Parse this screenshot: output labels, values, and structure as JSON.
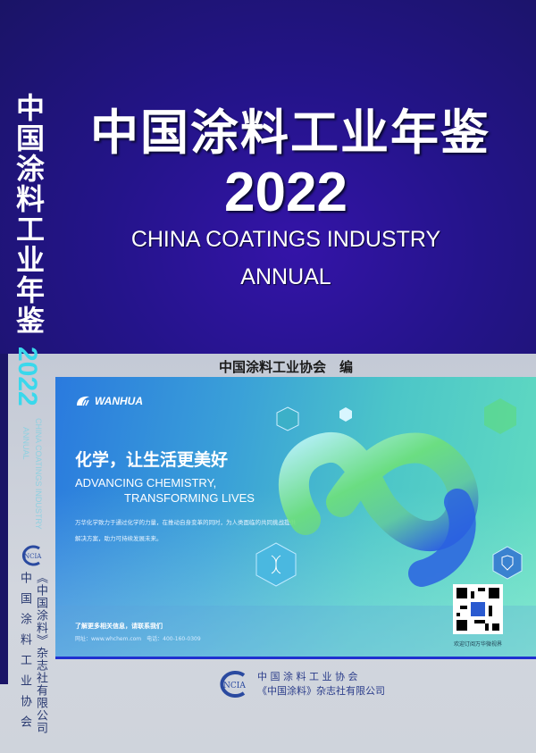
{
  "cover": {
    "title_cn": "中国涂料工业年鉴",
    "year": "2022",
    "title_en_line1": "CHINA COATINGS INDUSTRY",
    "title_en_line2": "ANNUAL",
    "editor": "中国涂料工业协会　编"
  },
  "spine": {
    "title_chars": [
      "中",
      "国",
      "涂",
      "料",
      "工",
      "业",
      "年",
      "鉴"
    ],
    "year": "2022",
    "en_line1": "CHINA COATINGS INDUSTRY",
    "en_line2": "ANNUAL",
    "logo_text": "NCIA",
    "publisher_col1": "《中国涂料》杂志社有限公司",
    "publisher_col2": "中国涂料工业协会"
  },
  "ad": {
    "brand": "WANHUA",
    "slogan_cn": "化学，让生活更美好",
    "slogan_en_line1": "ADVANCING CHEMISTRY,",
    "slogan_en_line2": "TRANSFORMING LIVES",
    "body": "万华化学致力于通过化学的力量，在推动自身变革的同时，为人类面临的共同挑战提供解决方案，助力可持续发展未来。",
    "contact_heading": "了解更多相关信息，请联系我们",
    "contact_line": "网址：www.whchem.com　电话：400-160-0309",
    "qr_caption": "欢迎订阅万华微视界",
    "colors": {
      "left": "#2a7ade",
      "right": "#62dcc0"
    }
  },
  "publisher": {
    "logo_text": "NCIA",
    "line1": "中 国 涂 料 工 业 协 会",
    "line2": "《中国涂料》杂志社有限公司"
  },
  "colors": {
    "background_top": "#24148a",
    "band": "#c8ced8",
    "spine_year": "#3ad8ec"
  }
}
